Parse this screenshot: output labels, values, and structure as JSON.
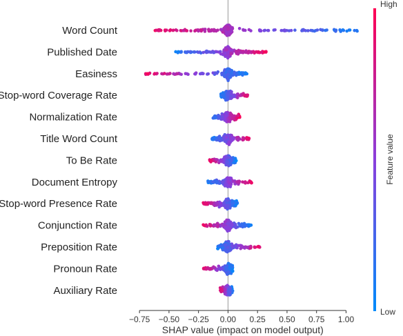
{
  "chart_data": {
    "type": "scatter",
    "subtype": "shap-beeswarm-summary",
    "xlabel": "SHAP value (impact on model output)",
    "xlim": [
      -0.78,
      1.12
    ],
    "x_ticks": [
      -0.75,
      -0.5,
      -0.25,
      0.0,
      0.25,
      0.5,
      0.75,
      1.0
    ],
    "x_tick_labels": [
      "−0.75",
      "−0.50",
      "−0.25",
      "0.00",
      "0.25",
      "0.50",
      "0.75",
      "1.00"
    ],
    "features": [
      "Word Count",
      "Published Date",
      "Easiness",
      "Stop-word Coverage Rate",
      "Normalization Rate",
      "Title Word Count",
      "To Be Rate",
      "Document Entropy",
      "Stop-word Presence Rate",
      "Conjunction Rate",
      "Preposition Rate",
      "Pronoun Rate",
      "Auxiliary Rate"
    ],
    "feature_spread": [
      {
        "name": "Word Count",
        "x_min": -0.62,
        "x_max": 1.12
      },
      {
        "name": "Published Date",
        "x_min": -0.45,
        "x_max": 0.33
      },
      {
        "name": "Easiness",
        "x_min": -0.7,
        "x_max": 0.16
      },
      {
        "name": "Stop-word Coverage Rate",
        "x_min": -0.06,
        "x_max": 0.17
      },
      {
        "name": "Normalization Rate",
        "x_min": -0.14,
        "x_max": 0.1
      },
      {
        "name": "Title Word Count",
        "x_min": -0.14,
        "x_max": 0.18
      },
      {
        "name": "To Be Rate",
        "x_min": -0.16,
        "x_max": 0.07
      },
      {
        "name": "Document Entropy",
        "x_min": -0.17,
        "x_max": 0.2
      },
      {
        "name": "Stop-word Presence Rate",
        "x_min": -0.21,
        "x_max": 0.08
      },
      {
        "name": "Conjunction Rate",
        "x_min": -0.22,
        "x_max": 0.2
      },
      {
        "name": "Preposition Rate",
        "x_min": -0.09,
        "x_max": 0.27
      },
      {
        "name": "Pronoun Rate",
        "x_min": -0.21,
        "x_max": 0.04
      },
      {
        "name": "Auxiliary Rate",
        "x_min": -0.07,
        "x_max": 0.04
      }
    ],
    "colorbar": {
      "label": "Feature value",
      "high_label": "High",
      "low_label": "Low",
      "low_color": "#008bfb",
      "high_color": "#ff0052"
    },
    "grid": false,
    "zero_line": true
  }
}
